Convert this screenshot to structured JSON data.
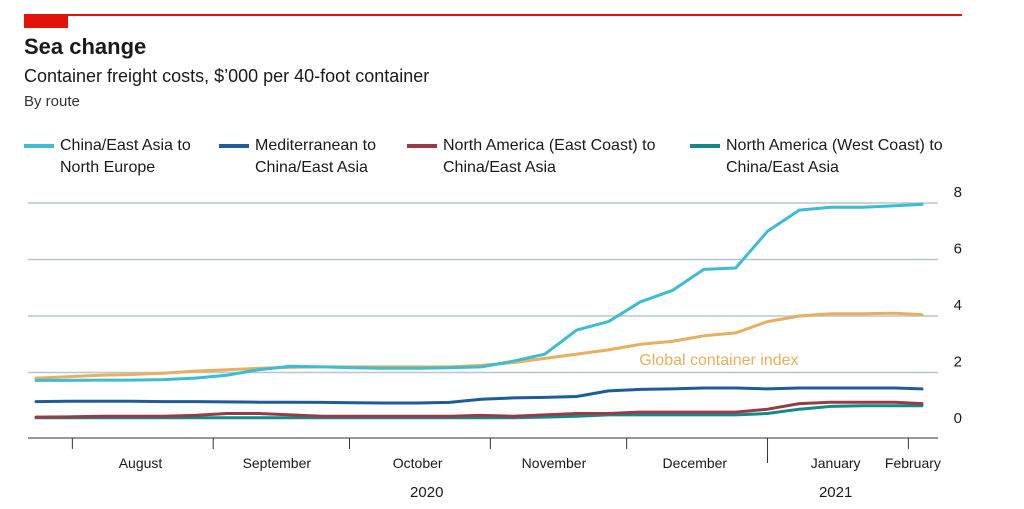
{
  "header": {
    "title": "Sea change",
    "subtitle": "Container freight costs, $’000 per 40-foot container",
    "note": "By route"
  },
  "colors": {
    "accent": "#e3120b",
    "china_north_europe": "#3ebcd2",
    "mediterranean": "#1f5c99",
    "na_east": "#9a3a44",
    "na_west": "#138a8a",
    "global_index": "#e6b05f",
    "grid": "#b7c6cf",
    "axis": "#333333"
  },
  "legend": [
    {
      "line1": "China/East Asia to",
      "line2": "North Europe",
      "color_key": "china_north_europe"
    },
    {
      "line1": "Mediterranean to",
      "line2": "China/East Asia",
      "color_key": "mediterranean"
    },
    {
      "line1": "North America (East Coast) to",
      "line2": "China/East Asia",
      "color_key": "na_east"
    },
    {
      "line1": "North America (West Coast) to",
      "line2": "China/East Asia",
      "color_key": "na_west"
    }
  ],
  "chart_data": {
    "type": "line",
    "title": "Sea change",
    "subtitle": "Container freight costs, $’000 per 40-foot container",
    "ylabel": "",
    "xlabel": "",
    "ylim": [
      0,
      8
    ],
    "yticks": [
      "0",
      "2",
      "4",
      "6",
      "8"
    ],
    "grid": true,
    "legend_position": "top",
    "x_months": [
      "August",
      "September",
      "October",
      "November",
      "December",
      "January",
      "February"
    ],
    "x_years": [
      "2020",
      "2021"
    ],
    "x": [
      "2020-07-24",
      "2020-07-31",
      "2020-08-07",
      "2020-08-14",
      "2020-08-21",
      "2020-08-28",
      "2020-09-04",
      "2020-09-11",
      "2020-09-18",
      "2020-09-25",
      "2020-10-02",
      "2020-10-09",
      "2020-10-16",
      "2020-10-23",
      "2020-10-30",
      "2020-11-06",
      "2020-11-13",
      "2020-11-20",
      "2020-11-27",
      "2020-12-04",
      "2020-12-11",
      "2020-12-18",
      "2020-12-25",
      "2021-01-01",
      "2021-01-08",
      "2021-01-15",
      "2021-01-22",
      "2021-01-29",
      "2021-02-04"
    ],
    "series": [
      {
        "name": "China/East Asia to North Europe",
        "color_key": "china_north_europe",
        "values": [
          1.72,
          1.72,
          1.73,
          1.73,
          1.75,
          1.8,
          1.9,
          2.1,
          2.22,
          2.2,
          2.17,
          2.15,
          2.15,
          2.17,
          2.2,
          2.4,
          2.65,
          3.5,
          3.8,
          4.5,
          4.9,
          5.65,
          5.7,
          7.0,
          7.75,
          7.85,
          7.85,
          7.9,
          7.95
        ]
      },
      {
        "name": "Global container index",
        "color_key": "global_index",
        "values": [
          1.8,
          1.85,
          1.9,
          1.93,
          1.97,
          2.05,
          2.1,
          2.15,
          2.18,
          2.2,
          2.2,
          2.2,
          2.2,
          2.2,
          2.25,
          2.35,
          2.5,
          2.65,
          2.8,
          3.0,
          3.1,
          3.3,
          3.4,
          3.8,
          4.0,
          4.08,
          4.08,
          4.1,
          4.05
        ]
      },
      {
        "name": "Mediterranean to China/East Asia",
        "color_key": "mediterranean",
        "values": [
          0.97,
          0.98,
          0.98,
          0.98,
          0.97,
          0.97,
          0.96,
          0.95,
          0.95,
          0.94,
          0.93,
          0.92,
          0.92,
          0.94,
          1.05,
          1.1,
          1.12,
          1.15,
          1.35,
          1.4,
          1.42,
          1.45,
          1.45,
          1.42,
          1.45,
          1.45,
          1.45,
          1.45,
          1.42
        ]
      },
      {
        "name": "North America (East Coast) to China/East Asia",
        "color_key": "na_east",
        "values": [
          0.42,
          0.43,
          0.45,
          0.45,
          0.45,
          0.48,
          0.55,
          0.55,
          0.5,
          0.45,
          0.45,
          0.45,
          0.45,
          0.45,
          0.48,
          0.45,
          0.5,
          0.55,
          0.55,
          0.6,
          0.6,
          0.6,
          0.6,
          0.7,
          0.9,
          0.95,
          0.95,
          0.95,
          0.9
        ]
      },
      {
        "name": "North America (West Coast) to China/East Asia",
        "color_key": "na_west",
        "values": [
          0.4,
          0.4,
          0.4,
          0.4,
          0.4,
          0.4,
          0.4,
          0.4,
          0.4,
          0.4,
          0.4,
          0.4,
          0.4,
          0.4,
          0.4,
          0.4,
          0.42,
          0.45,
          0.5,
          0.5,
          0.5,
          0.5,
          0.5,
          0.55,
          0.7,
          0.8,
          0.82,
          0.82,
          0.82
        ]
      }
    ],
    "annotations": [
      {
        "text": "Global container index",
        "series": "Global container index",
        "x": "2020-12-18",
        "y": 2.45
      }
    ]
  }
}
